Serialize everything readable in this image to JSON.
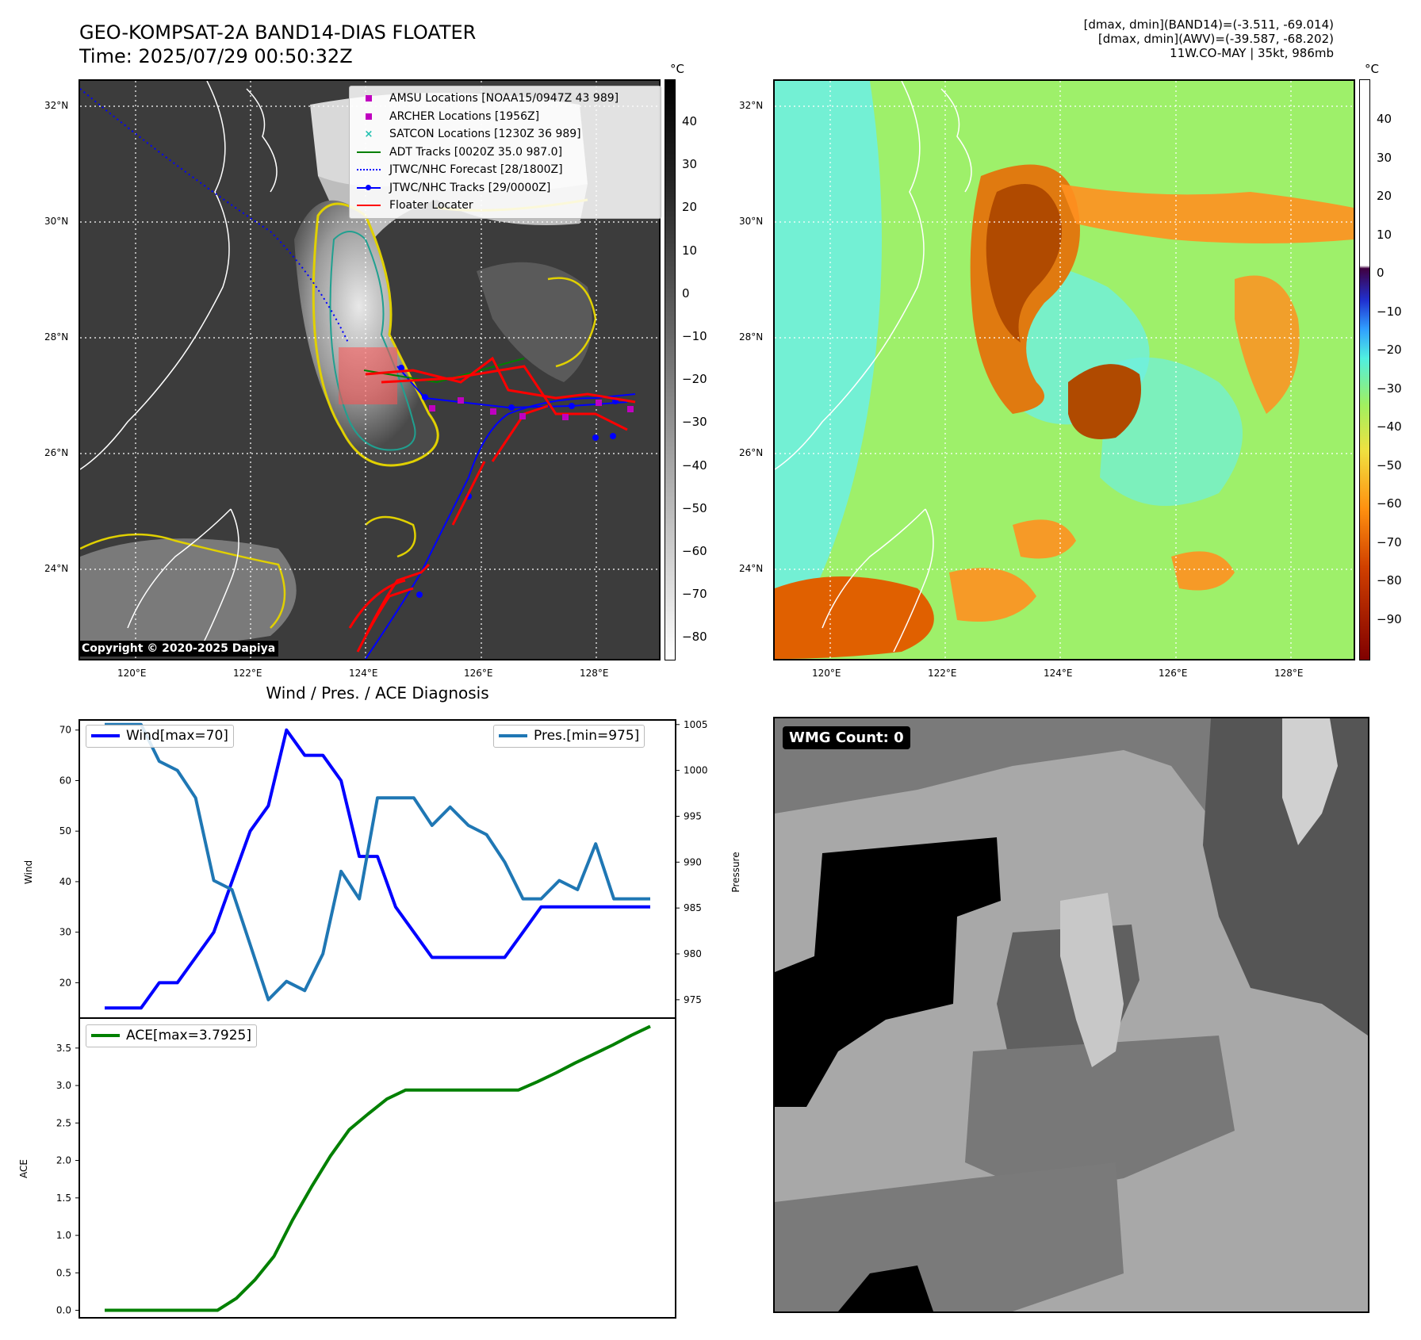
{
  "header": {
    "title_line1": "GEO-KOMPSAT-2A BAND14-DIAS FLOATER",
    "title_line2": "Time: 2025/07/29 00:50:32Z",
    "meta_line1": "[dmax, dmin](BAND14)=(-3.511, -69.014)",
    "meta_line2": "[dmax, dmin](AWV)=(-39.587, -68.202)",
    "meta_line3": "11W.CO-MAY | 35kt, 986mb"
  },
  "map": {
    "lat_ticks": [
      "32°N",
      "30°N",
      "28°N",
      "26°N",
      "24°N"
    ],
    "lon_ticks": [
      "120°E",
      "122°E",
      "124°E",
      "126°E",
      "128°E"
    ],
    "copyright": "Copyright © 2020-2025 Dapiya",
    "legend": [
      {
        "label": "AMSU Locations [NOAA15/0947Z 43 989]",
        "symbol": "square",
        "color": "#c000c0"
      },
      {
        "label": "ARCHER Locations [1956Z]",
        "symbol": "square",
        "color": "#c000c0"
      },
      {
        "label": "SATCON Locations [1230Z 36 989]",
        "symbol": "x",
        "color": "#20c0b0"
      },
      {
        "label": "ADT Tracks [0020Z 35.0 987.0]",
        "symbol": "line",
        "color": "#008000"
      },
      {
        "label": "JTWC/NHC Forecast [28/1800Z]",
        "symbol": "dotted",
        "color": "#0000ff"
      },
      {
        "label": "JTWC/NHC Tracks [29/0000Z]",
        "symbol": "line-dot",
        "color": "#0000ff"
      },
      {
        "label": "Floater Locater",
        "symbol": "line",
        "color": "#ff0000"
      }
    ]
  },
  "colorbar_left": {
    "unit": "°C",
    "ticks": [
      "40",
      "30",
      "20",
      "10",
      "0",
      "−10",
      "−20",
      "−30",
      "−40",
      "−50",
      "−60",
      "−70",
      "−80"
    ]
  },
  "colorbar_right": {
    "unit": "°C",
    "ticks": [
      "40",
      "30",
      "20",
      "10",
      "0",
      "−10",
      "−20",
      "−30",
      "−40",
      "−50",
      "−60",
      "−70",
      "−80",
      "−90"
    ]
  },
  "wmg": {
    "label": "WMG Count: 0"
  },
  "chart_data": [
    {
      "type": "line",
      "title": "Wind / Pres. / ACE Diagnosis",
      "ylabel": "Wind",
      "ylabel_right": "Pressure",
      "ylim": [
        13,
        72
      ],
      "ylim_right": [
        973,
        1005.5
      ],
      "yticks": [
        20,
        30,
        40,
        50,
        60,
        70
      ],
      "yticks_right": [
        975,
        980,
        985,
        990,
        995,
        1000,
        1005
      ],
      "series": [
        {
          "name": "Wind[max=70]",
          "color": "#0000ff",
          "axis": "left",
          "values": [
            15,
            15,
            15,
            20,
            20,
            25,
            30,
            40,
            50,
            55,
            70,
            65,
            65,
            60,
            45,
            45,
            35,
            30,
            25,
            25,
            25,
            25,
            25,
            30,
            35,
            35,
            35,
            35,
            35,
            35,
            35
          ]
        },
        {
          "name": "Pres.[min=975]",
          "color": "#1f77b4",
          "axis": "right",
          "values": [
            1005,
            1005,
            1005,
            1001,
            1000,
            997,
            988,
            987,
            981,
            975,
            977,
            976,
            980,
            989,
            986,
            997,
            997,
            997,
            994,
            996,
            994,
            993,
            990,
            986,
            986,
            988,
            987,
            992,
            986,
            986,
            986
          ]
        }
      ]
    },
    {
      "type": "line",
      "ylabel": "ACE",
      "ylim": [
        -0.1,
        3.9
      ],
      "yticks": [
        "0.0",
        "0.5",
        "1.0",
        "1.5",
        "2.0",
        "2.5",
        "3.0",
        "3.5"
      ],
      "series": [
        {
          "name": "ACE[max=3.7925]",
          "color": "#008000",
          "values": [
            0,
            0,
            0,
            0,
            0,
            0,
            0,
            0.16,
            0.41,
            0.72,
            1.21,
            1.65,
            2.06,
            2.41,
            2.62,
            2.82,
            2.94,
            2.94,
            2.94,
            2.94,
            2.94,
            2.94,
            2.94,
            3.05,
            3.17,
            3.3,
            3.42,
            3.54,
            3.67,
            3.79
          ]
        }
      ]
    }
  ]
}
